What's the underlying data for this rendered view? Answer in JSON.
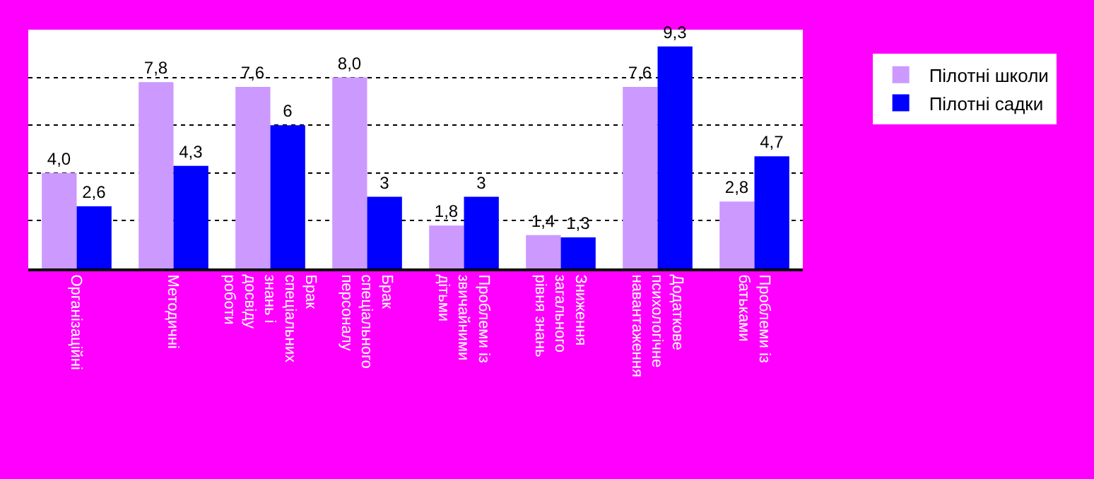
{
  "chart_data": {
    "type": "bar",
    "categories": [
      "Організаційні",
      "Методичні",
      "Брак спеціальних знань і досвіду роботи",
      "Брак спеціального персоналу",
      "Проблеми із звичайними дітьми",
      "Зниження загального рівня знань",
      "Додаткове психологічне навантаження",
      "Проблеми із батьками"
    ],
    "series": [
      {
        "name": "Пілотні школи",
        "color": "#cc99ff",
        "values": [
          4.0,
          7.8,
          7.6,
          8.0,
          1.8,
          1.4,
          7.6,
          2.8
        ],
        "value_labels": [
          "4,0",
          "7,8",
          "7,6",
          "8,0",
          "1,8",
          "1,4",
          "7,6",
          "2,8"
        ]
      },
      {
        "name": "Пілотні садки",
        "color": "#0000ff",
        "values": [
          2.6,
          4.3,
          6,
          3,
          3,
          1.3,
          9.3,
          4.7
        ],
        "value_labels": [
          "2,6",
          "4,3",
          "6",
          "3",
          "3",
          "1,3",
          "9,3",
          "4,7"
        ]
      }
    ],
    "ylim": [
      0,
      10
    ],
    "yticks": [
      {
        "value": 0,
        "label": null
      },
      {
        "value": 2,
        "label": null
      },
      {
        "value": 4,
        "label": null
      },
      {
        "value": 6,
        "label": null
      },
      {
        "value": 8,
        "label": null
      },
      {
        "value": 10,
        "label": null
      }
    ],
    "grid": "y",
    "legend": "right",
    "tick_labels": "x"
  }
}
